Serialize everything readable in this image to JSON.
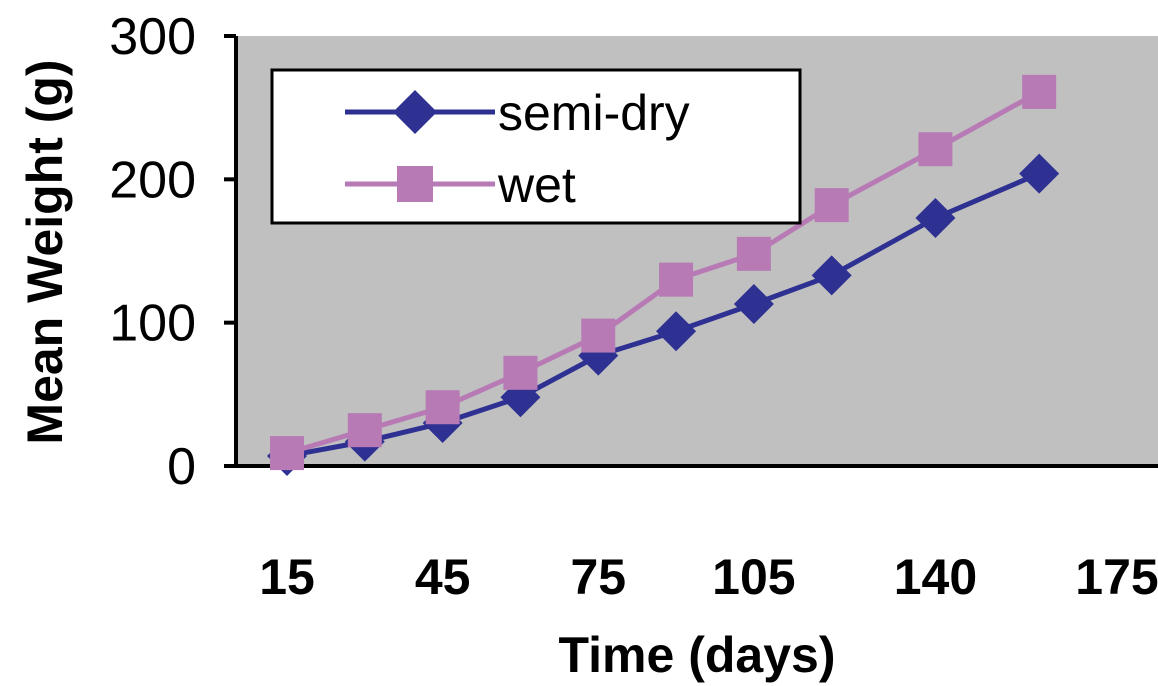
{
  "chart_data": {
    "type": "line",
    "title": "",
    "xlabel": "Time (days)",
    "ylabel": "Mean Weight (g)",
    "x": [
      15,
      30,
      45,
      60,
      75,
      90,
      105,
      120,
      140,
      160,
      175
    ],
    "x_tick_labels": [
      "15",
      "45",
      "75",
      "105",
      "140",
      "175"
    ],
    "x_tick_positions": [
      15,
      45,
      75,
      105,
      140,
      175
    ],
    "ylim": [
      0,
      300
    ],
    "y_ticks": [
      0,
      100,
      200,
      300
    ],
    "grid": false,
    "plot_background": "#c0c0c0",
    "legend_position": "top-left",
    "series": [
      {
        "name": "semi-dry",
        "color": "#2e3192",
        "marker": "diamond",
        "values": [
          7,
          17,
          30,
          48,
          77,
          94,
          113,
          133,
          173,
          204,
          null
        ]
      },
      {
        "name": "wet",
        "color": "#b77ab5",
        "marker": "square",
        "values": [
          9,
          25,
          41,
          65,
          91,
          130,
          148,
          182,
          221,
          261,
          null
        ]
      }
    ]
  }
}
